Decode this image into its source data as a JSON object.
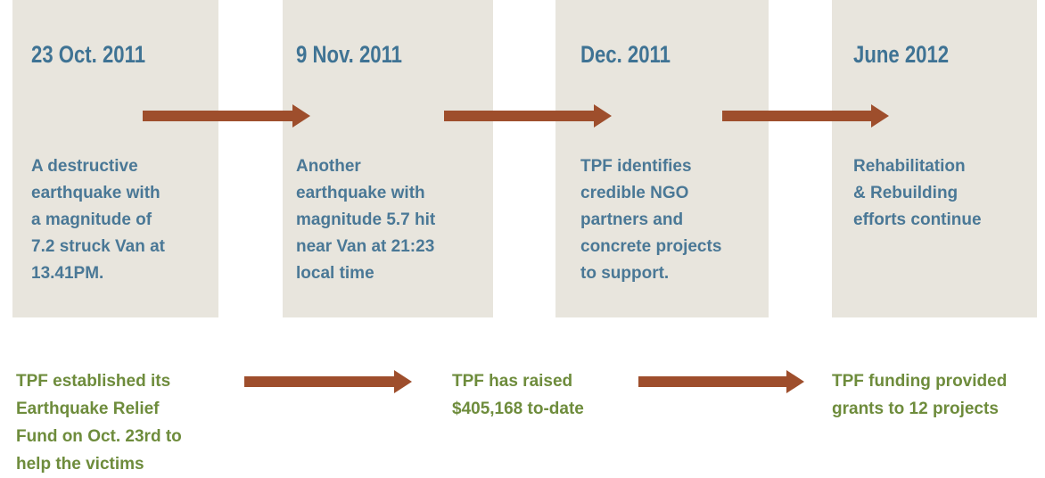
{
  "timeline": [
    {
      "date": "23 Oct. 2011",
      "lines": [
        "A destructive",
        "earthquake with",
        "a magnitude of",
        "7.2 struck Van at",
        "13.41PM."
      ]
    },
    {
      "date": "9 Nov. 2011",
      "lines": [
        "Another",
        "earthquake with",
        "magnitude 5.7 hit",
        "near Van at 21:23",
        "local time"
      ]
    },
    {
      "date": "Dec. 2011",
      "lines": [
        "TPF identifies",
        "credible NGO",
        "partners and",
        "concrete projects",
        "to support."
      ]
    },
    {
      "date": "June 2012",
      "lines": [
        "Rehabilitation",
        "& Rebuilding",
        "efforts continue"
      ]
    }
  ],
  "notes": [
    {
      "lines": [
        "TPF established its",
        "Earthquake Relief",
        "Fund on Oct. 23rd to",
        "help the victims"
      ]
    },
    {
      "lines": [
        "TPF has raised",
        "$405,168 to-date"
      ]
    },
    {
      "lines": [
        "TPF funding provided",
        "grants to 12 projects"
      ]
    }
  ]
}
